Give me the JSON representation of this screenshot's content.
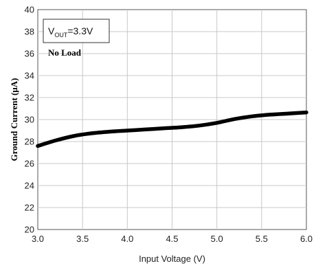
{
  "chart_data": {
    "type": "line",
    "xlabel": "Input Voltage (V)",
    "ylabel": "Ground Current (μA)",
    "xlim": [
      3.0,
      6.0
    ],
    "ylim": [
      20,
      40
    ],
    "xticks": [
      "3.0",
      "3.5",
      "4.0",
      "4.5",
      "5.0",
      "5.5",
      "6.0"
    ],
    "yticks": [
      "20",
      "22",
      "24",
      "26",
      "28",
      "30",
      "32",
      "34",
      "36",
      "38",
      "40"
    ],
    "grid": true,
    "legend": {
      "prefix": "V",
      "subscript": "OUT",
      "suffix": "=3.3V",
      "placement": "top-left"
    },
    "annotation": "No Load",
    "series": [
      {
        "color": "#000000",
        "x": [
          3.0,
          3.2,
          3.4,
          3.6,
          3.8,
          4.0,
          4.2,
          4.4,
          4.6,
          4.8,
          5.0,
          5.2,
          5.4,
          5.6,
          5.8,
          6.0
        ],
        "y": [
          27.6,
          28.1,
          28.5,
          28.75,
          28.9,
          29.0,
          29.1,
          29.2,
          29.3,
          29.45,
          29.7,
          30.05,
          30.3,
          30.45,
          30.55,
          30.65
        ]
      }
    ]
  }
}
